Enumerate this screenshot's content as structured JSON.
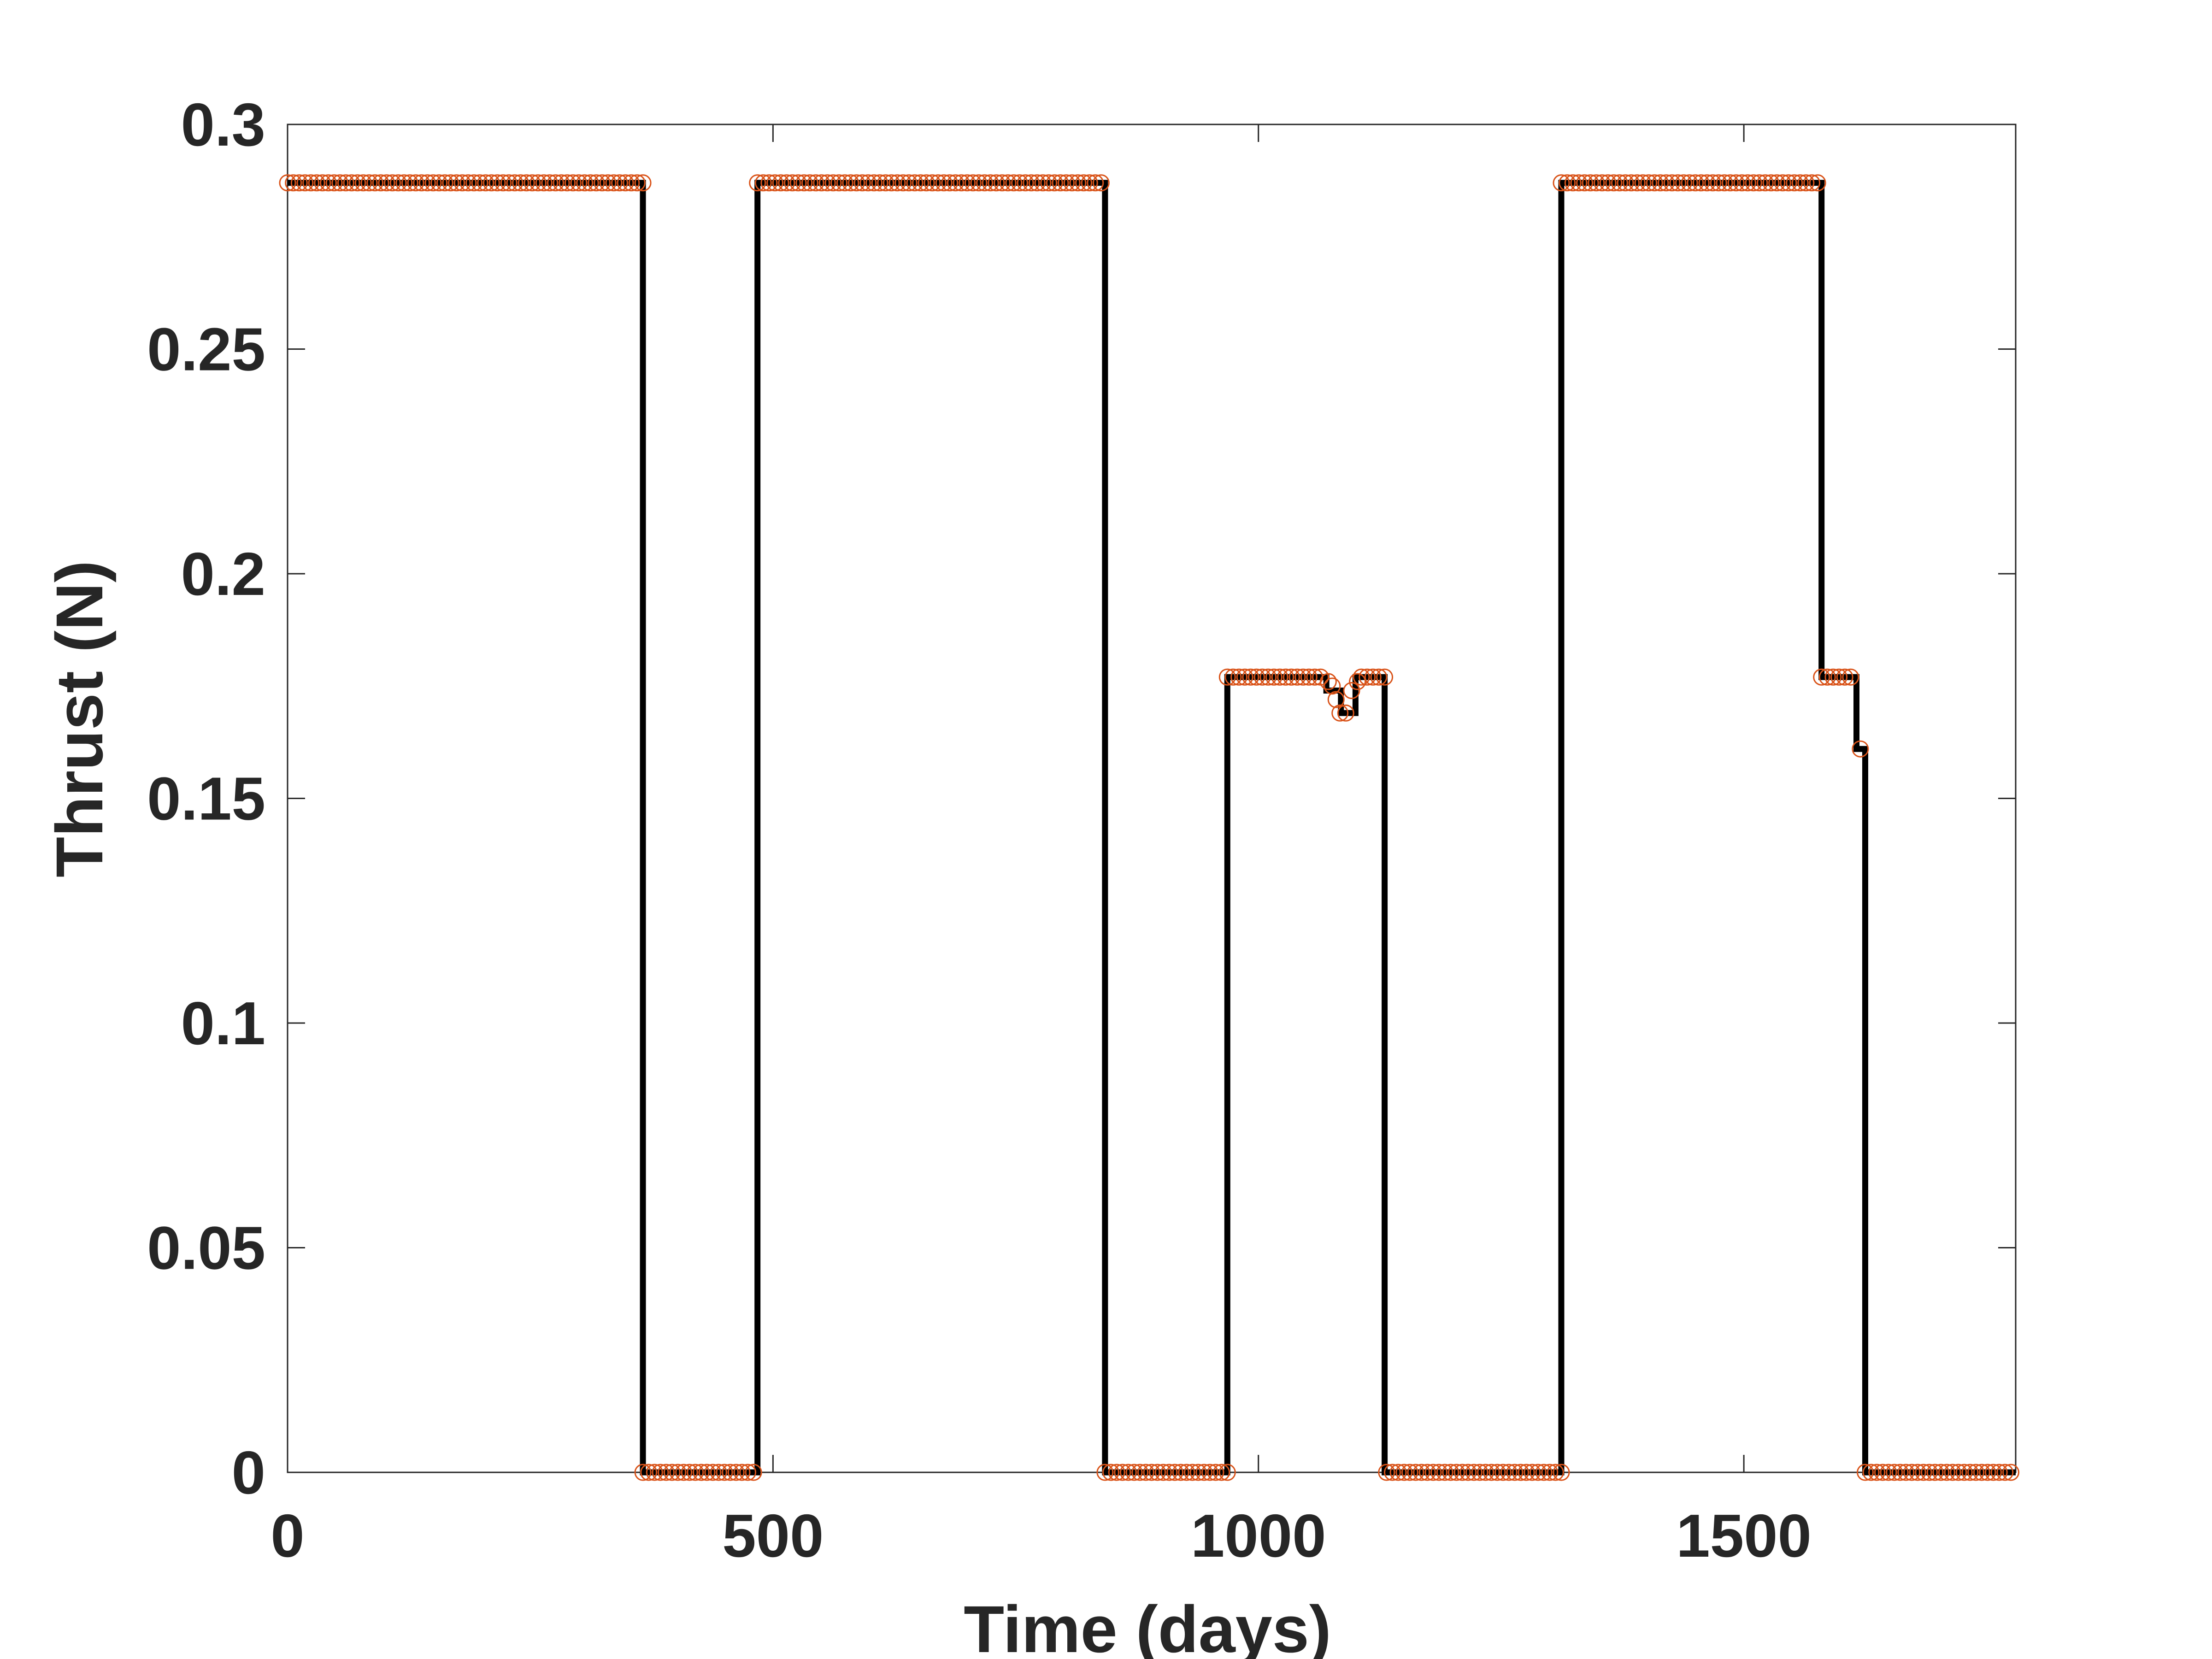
{
  "chart_data": {
    "type": "line",
    "title": "",
    "xlabel": "Time (days)",
    "ylabel": "Thrust (N)",
    "xlim": [
      0,
      1780
    ],
    "ylim": [
      0,
      0.3
    ],
    "xticks": [
      0,
      500,
      1000,
      1500
    ],
    "xtick_labels": [
      "0",
      "500",
      "1000",
      "1500"
    ],
    "yticks": [
      0,
      0.05,
      0.1,
      0.15,
      0.2,
      0.25,
      0.3
    ],
    "ytick_labels": [
      "0",
      "0.05",
      "0.1",
      "0.15",
      "0.2",
      "0.25",
      "0.3"
    ],
    "grid": false,
    "legend": "none",
    "series": [
      {
        "style": "stairs",
        "color": "#000000",
        "x": [
          0,
          366,
          366,
          484,
          484,
          842,
          842,
          968,
          968,
          1070,
          1070,
          1085,
          1085,
          1100,
          1100,
          1130,
          1130,
          1312,
          1312,
          1580,
          1580,
          1616,
          1616,
          1625,
          1625,
          1780
        ],
        "y": [
          0.287,
          0.287,
          0,
          0,
          0.287,
          0.287,
          0,
          0,
          0.177,
          0.177,
          0.174,
          0.174,
          0.169,
          0.169,
          0.177,
          0.177,
          0,
          0,
          0.287,
          0.287,
          0.177,
          0.177,
          0.161,
          0.161,
          0,
          0
        ]
      },
      {
        "style": "markers",
        "marker": "circle",
        "color": "#d95319",
        "segments": [
          {
            "x_start": 0,
            "x_end": 366,
            "y": 0.287
          },
          {
            "x_start": 366,
            "x_end": 484,
            "y": 0
          },
          {
            "x_start": 484,
            "x_end": 842,
            "y": 0.287
          },
          {
            "x_start": 842,
            "x_end": 968,
            "y": 0
          },
          {
            "x_start": 968,
            "x_end": 1068,
            "y": 0.177
          },
          {
            "x_start": 1132,
            "x_end": 1312,
            "y": 0
          },
          {
            "x_start": 1312,
            "x_end": 1580,
            "y": 0.287
          },
          {
            "x_start": 1580,
            "x_end": 1614,
            "y": 0.177
          },
          {
            "x_start": 1625,
            "x_end": 1780,
            "y": 0
          }
        ],
        "points": [
          {
            "x": 1072,
            "y": 0.176
          },
          {
            "x": 1076,
            "y": 0.175
          },
          {
            "x": 1080,
            "y": 0.172
          },
          {
            "x": 1084,
            "y": 0.169
          },
          {
            "x": 1090,
            "y": 0.169
          },
          {
            "x": 1096,
            "y": 0.174
          },
          {
            "x": 1102,
            "y": 0.176
          },
          {
            "x": 1106,
            "y": 0.177
          },
          {
            "x": 1112,
            "y": 0.177
          },
          {
            "x": 1118,
            "y": 0.177
          },
          {
            "x": 1124,
            "y": 0.177
          },
          {
            "x": 1130,
            "y": 0.177
          },
          {
            "x": 1620,
            "y": 0.161
          }
        ]
      }
    ]
  }
}
